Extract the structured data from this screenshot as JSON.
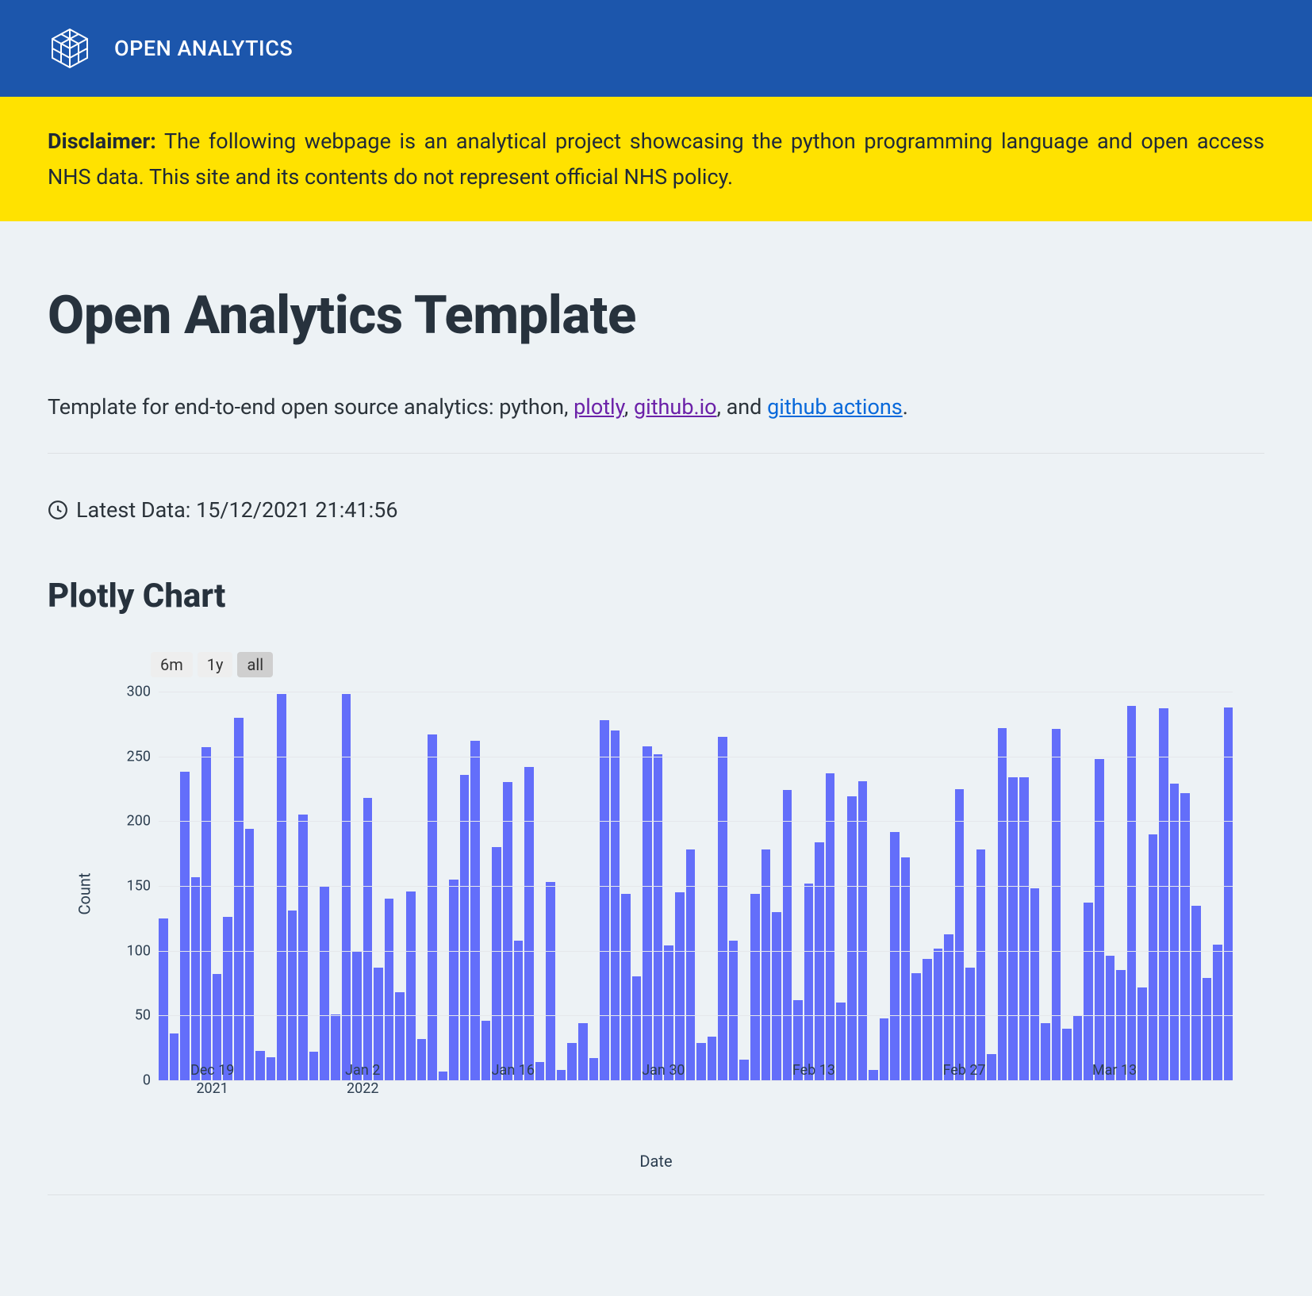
{
  "header": {
    "brand": "OPEN ANALYTICS"
  },
  "disclaimer": {
    "label": "Disclaimer:",
    "text": "The following webpage is an analytical project showcasing the python programming language and open access NHS data. This site and its contents do not represent official NHS policy."
  },
  "page": {
    "title": "Open Analytics Template",
    "intro_prefix": "Template for end-to-end open source analytics: python, ",
    "link_plotly": "plotly",
    "sep1": ", ",
    "link_githubio": "github.io",
    "sep2": ", and ",
    "link_ghactions": "github actions",
    "intro_suffix": "."
  },
  "latest": {
    "label": "Latest Data: ",
    "value": "15/12/2021 21:41:56"
  },
  "chart": {
    "section_title": "Plotly Chart",
    "range_buttons": [
      {
        "label": "6m",
        "active": false
      },
      {
        "label": "1y",
        "active": false
      },
      {
        "label": "all",
        "active": true
      }
    ],
    "type": "bar",
    "bar_color": "#636efa",
    "background_color": "#edf2f5",
    "grid_color": "#e5e7eb",
    "ylabel": "Count",
    "xlabel": "Date",
    "ylim": [
      0,
      300
    ],
    "ytick_step": 50,
    "xticks": [
      {
        "label": "Dec 19",
        "sub": "2021",
        "pos_pct": 5
      },
      {
        "label": "Jan 2",
        "sub": "2022",
        "pos_pct": 19
      },
      {
        "label": "Jan 16",
        "sub": "",
        "pos_pct": 33
      },
      {
        "label": "Jan 30",
        "sub": "",
        "pos_pct": 47
      },
      {
        "label": "Feb 13",
        "sub": "",
        "pos_pct": 61
      },
      {
        "label": "Feb 27",
        "sub": "",
        "pos_pct": 75
      },
      {
        "label": "Mar 13",
        "sub": "",
        "pos_pct": 89
      }
    ],
    "values": [
      125,
      36,
      238,
      157,
      257,
      82,
      126,
      280,
      194,
      23,
      18,
      298,
      131,
      205,
      22,
      150,
      51,
      298,
      100,
      218,
      87,
      140,
      68,
      146,
      32,
      267,
      7,
      155,
      236,
      262,
      46,
      180,
      230,
      108,
      242,
      14,
      153,
      8,
      29,
      44,
      17,
      278,
      270,
      144,
      80,
      258,
      252,
      104,
      145,
      178,
      29,
      34,
      265,
      108,
      16,
      144,
      178,
      130,
      224,
      62,
      152,
      184,
      237,
      60,
      219,
      231,
      8,
      48,
      192,
      172,
      83,
      94,
      102,
      113,
      225,
      87,
      178,
      20,
      272,
      234,
      234,
      148,
      44,
      271,
      40,
      50,
      137,
      248,
      96,
      85,
      289,
      72,
      190,
      287,
      229,
      222,
      135,
      79,
      105,
      288
    ]
  }
}
